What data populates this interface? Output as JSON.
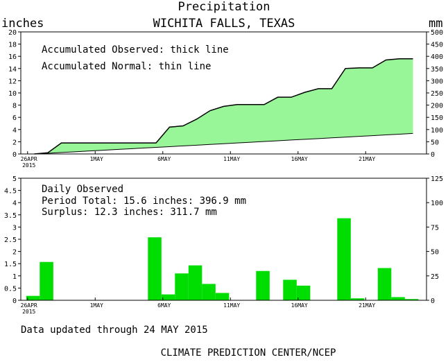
{
  "chart_data": [
    {
      "type": "area",
      "title": "Precipitation",
      "subtitle": "WICHITA FALLS, TEXAS",
      "ylabel_left": "inches",
      "ylabel_right": "mm",
      "ylim_left": [
        0,
        20
      ],
      "yticks_left": [
        "0",
        "2",
        "4",
        "6",
        "8",
        "10",
        "12",
        "14",
        "16",
        "18",
        "20"
      ],
      "ylim_right": [
        0,
        500
      ],
      "yticks_right": [
        "0",
        "50",
        "100",
        "150",
        "200",
        "250",
        "300",
        "350",
        "400",
        "450",
        "500"
      ],
      "xticks": [
        "26APR",
        "1MAY",
        "6MAY",
        "11MAY",
        "16MAY",
        "21MAY"
      ],
      "x_year": "2015",
      "annotations": [
        "Accumulated Observed: thick line",
        "Accumulated Normal: thin line"
      ],
      "colors": {
        "fill": "#98f598",
        "line": "#000000"
      },
      "observed": [
        0.0,
        0.2,
        1.8,
        1.8,
        1.8,
        1.8,
        1.8,
        1.8,
        1.8,
        1.8,
        4.4,
        4.6,
        5.7,
        7.1,
        7.8,
        8.1,
        8.1,
        8.1,
        9.3,
        9.3,
        10.1,
        10.7,
        10.7,
        14.0,
        14.1,
        14.1,
        15.4,
        15.6,
        15.6
      ],
      "normal": [
        0.0,
        0.12,
        0.24,
        0.36,
        0.48,
        0.6,
        0.72,
        0.84,
        0.96,
        1.08,
        1.2,
        1.32,
        1.44,
        1.56,
        1.68,
        1.8,
        1.92,
        2.04,
        2.16,
        2.28,
        2.4,
        2.52,
        2.64,
        2.76,
        2.88,
        3.0,
        3.12,
        3.24,
        3.36
      ]
    },
    {
      "type": "bar",
      "annotations": [
        "Daily Observed",
        "Period Total:   15.6 inches:   396.9 mm",
        "Surplus:   12.3 inches:  311.7 mm"
      ],
      "ylim_left": [
        0,
        5
      ],
      "yticks_left": [
        "0",
        "0.5",
        "1",
        "1.5",
        "2",
        "2.5",
        "3",
        "3.5",
        "4",
        "4.5",
        "5"
      ],
      "ylim_right": [
        0,
        125
      ],
      "yticks_right": [
        "0",
        "25",
        "50",
        "75",
        "100",
        "125"
      ],
      "xticks": [
        "26APR",
        "1MAY",
        "6MAY",
        "11MAY",
        "16MAY",
        "21MAY"
      ],
      "x_year": "2015",
      "colors": {
        "bar": "#00dd00"
      },
      "values": [
        0.18,
        1.57,
        0,
        0,
        0,
        0,
        0,
        0,
        0,
        2.58,
        0.24,
        1.1,
        1.43,
        0.67,
        0.3,
        0,
        0,
        1.2,
        0,
        0.84,
        0.6,
        0,
        0.01,
        3.36,
        0.08,
        0,
        1.32,
        0.13,
        0.05
      ]
    }
  ],
  "footer": {
    "updated": "Data updated through 24 MAY 2015",
    "credit": "CLIMATE PREDICTION CENTER/NCEP"
  }
}
